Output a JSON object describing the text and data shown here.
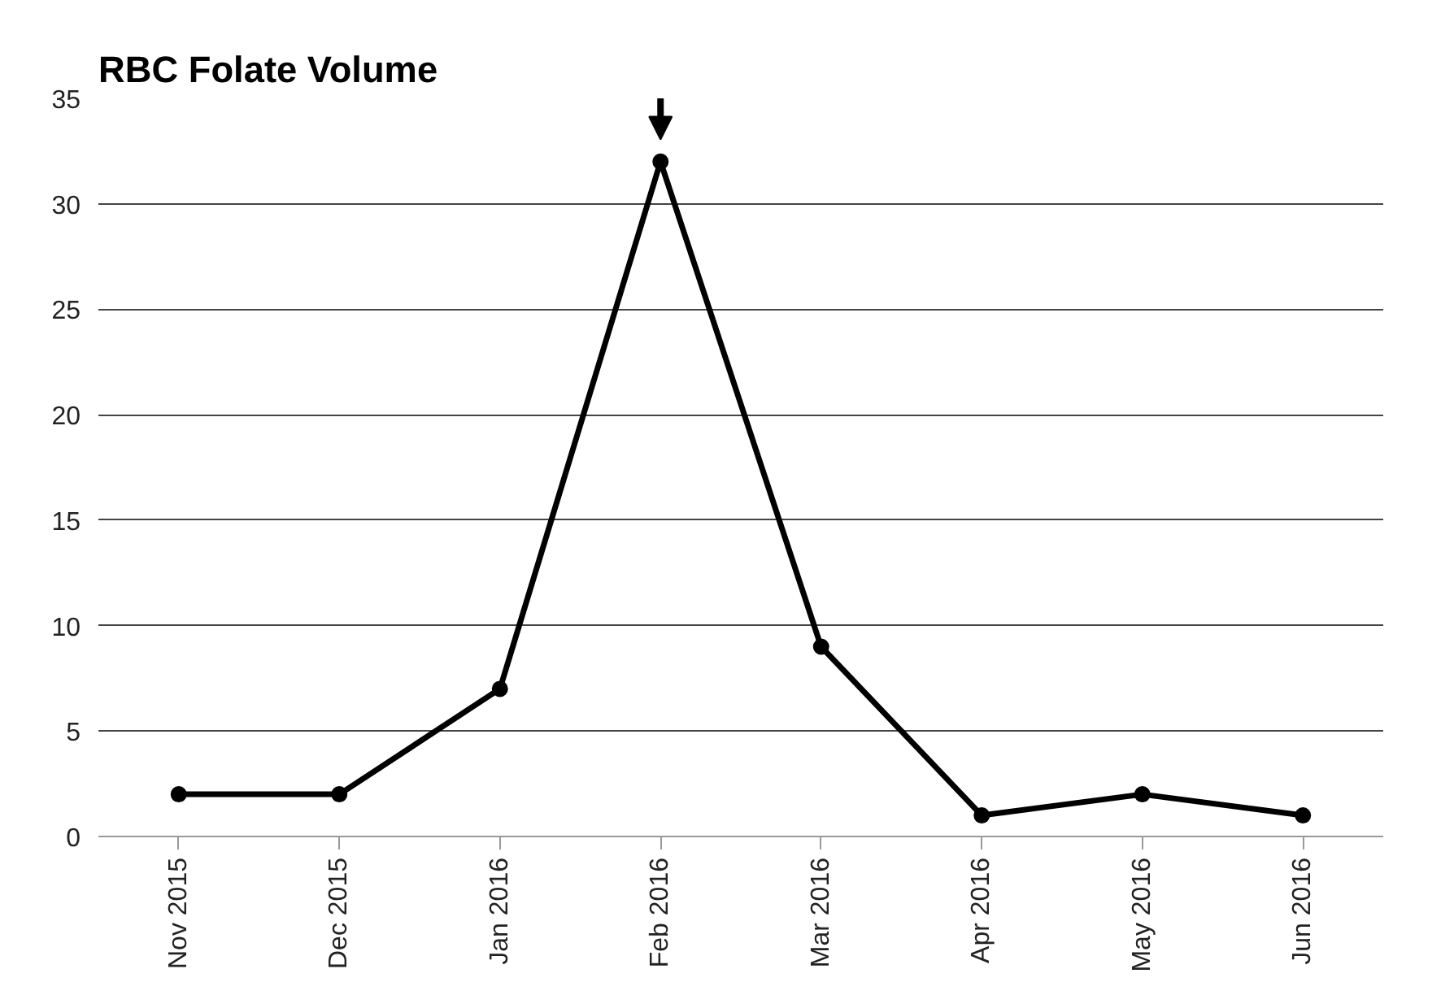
{
  "chart_data": {
    "type": "line",
    "title": "RBC Folate Volume",
    "categories": [
      "Nov 2015",
      "Dec 2015",
      "Jan 2016",
      "Feb 2016",
      "Mar 2016",
      "Apr 2016",
      "May 2016",
      "Jun 2016"
    ],
    "series": [
      {
        "color": "#000000",
        "values": [
          2,
          2,
          7,
          32,
          9,
          1,
          2,
          1
        ]
      }
    ],
    "ylim": [
      0,
      35
    ],
    "yticks": [
      0,
      5,
      10,
      15,
      20,
      25,
      30,
      35
    ],
    "grid": "y",
    "marker": "circle",
    "line_style": "solid"
  }
}
